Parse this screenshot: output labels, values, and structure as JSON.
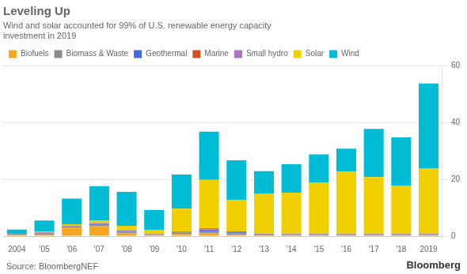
{
  "chart_data": {
    "type": "bar",
    "stacked": true,
    "title": "Leveling Up",
    "subtitle": "Wind and solar accounted for 99% of U.S. renewable energy capacity\ninvestment in 2019",
    "annotations": [
      "Source: BloombergNEF",
      "Bloomberg"
    ],
    "categories": [
      "2004",
      "'05",
      "'06",
      "'07",
      "'08",
      "'09",
      "'10",
      "'11",
      "'12",
      "'13",
      "'14",
      "'15",
      "'16",
      "'17",
      "'18",
      "2019"
    ],
    "series": [
      {
        "name": "Biofuels",
        "color": "#f5a623",
        "values": [
          0.3,
          0.5,
          3.0,
          3.5,
          1.0,
          0.2,
          0.8,
          1.0,
          0.5,
          0.3,
          0.2,
          0.2,
          0.2,
          0.2,
          0.2,
          0.2
        ]
      },
      {
        "name": "Biomass & Waste",
        "color": "#8c8c8c",
        "values": [
          0.2,
          0.5,
          0.5,
          0.5,
          0.5,
          0.3,
          0.5,
          0.5,
          0.5,
          0.3,
          0.3,
          0.3,
          0.3,
          0.3,
          0.3,
          0.3
        ]
      },
      {
        "name": "Geothermal",
        "color": "#4169e1",
        "values": [
          0.1,
          0.1,
          0.1,
          0.3,
          0.3,
          0.1,
          0.1,
          0.5,
          0.3,
          0.1,
          0.1,
          0.1,
          0.1,
          0.1,
          0.1,
          0.1
        ]
      },
      {
        "name": "Marine",
        "color": "#d05020",
        "values": [
          0.0,
          0.1,
          0.0,
          0.0,
          0.0,
          0.0,
          0.1,
          0.3,
          0.1,
          0.0,
          0.0,
          0.0,
          0.0,
          0.0,
          0.0,
          0.0
        ]
      },
      {
        "name": "Small hydro",
        "color": "#b070c0",
        "values": [
          0.1,
          0.1,
          0.1,
          0.3,
          0.3,
          0.1,
          0.2,
          0.5,
          0.3,
          0.2,
          0.2,
          0.2,
          0.2,
          0.2,
          0.2,
          0.2
        ]
      },
      {
        "name": "Solar",
        "color": "#f0d000",
        "values": [
          0.1,
          0.2,
          0.5,
          1.0,
          1.5,
          1.5,
          8.0,
          17.0,
          11.0,
          14.0,
          14.5,
          18.0,
          22.0,
          20.0,
          17.0,
          23.0
        ]
      },
      {
        "name": "Wind",
        "color": "#00bcd4",
        "values": [
          1.5,
          4.0,
          9.0,
          12.0,
          12.0,
          7.0,
          12.0,
          17.0,
          14.0,
          8.0,
          10.0,
          10.0,
          8.0,
          17.0,
          17.0,
          30.0
        ]
      }
    ],
    "ylim": [
      0,
      60
    ],
    "yticks": [
      0,
      20,
      40,
      60
    ],
    "grid": true,
    "legend": "top"
  }
}
